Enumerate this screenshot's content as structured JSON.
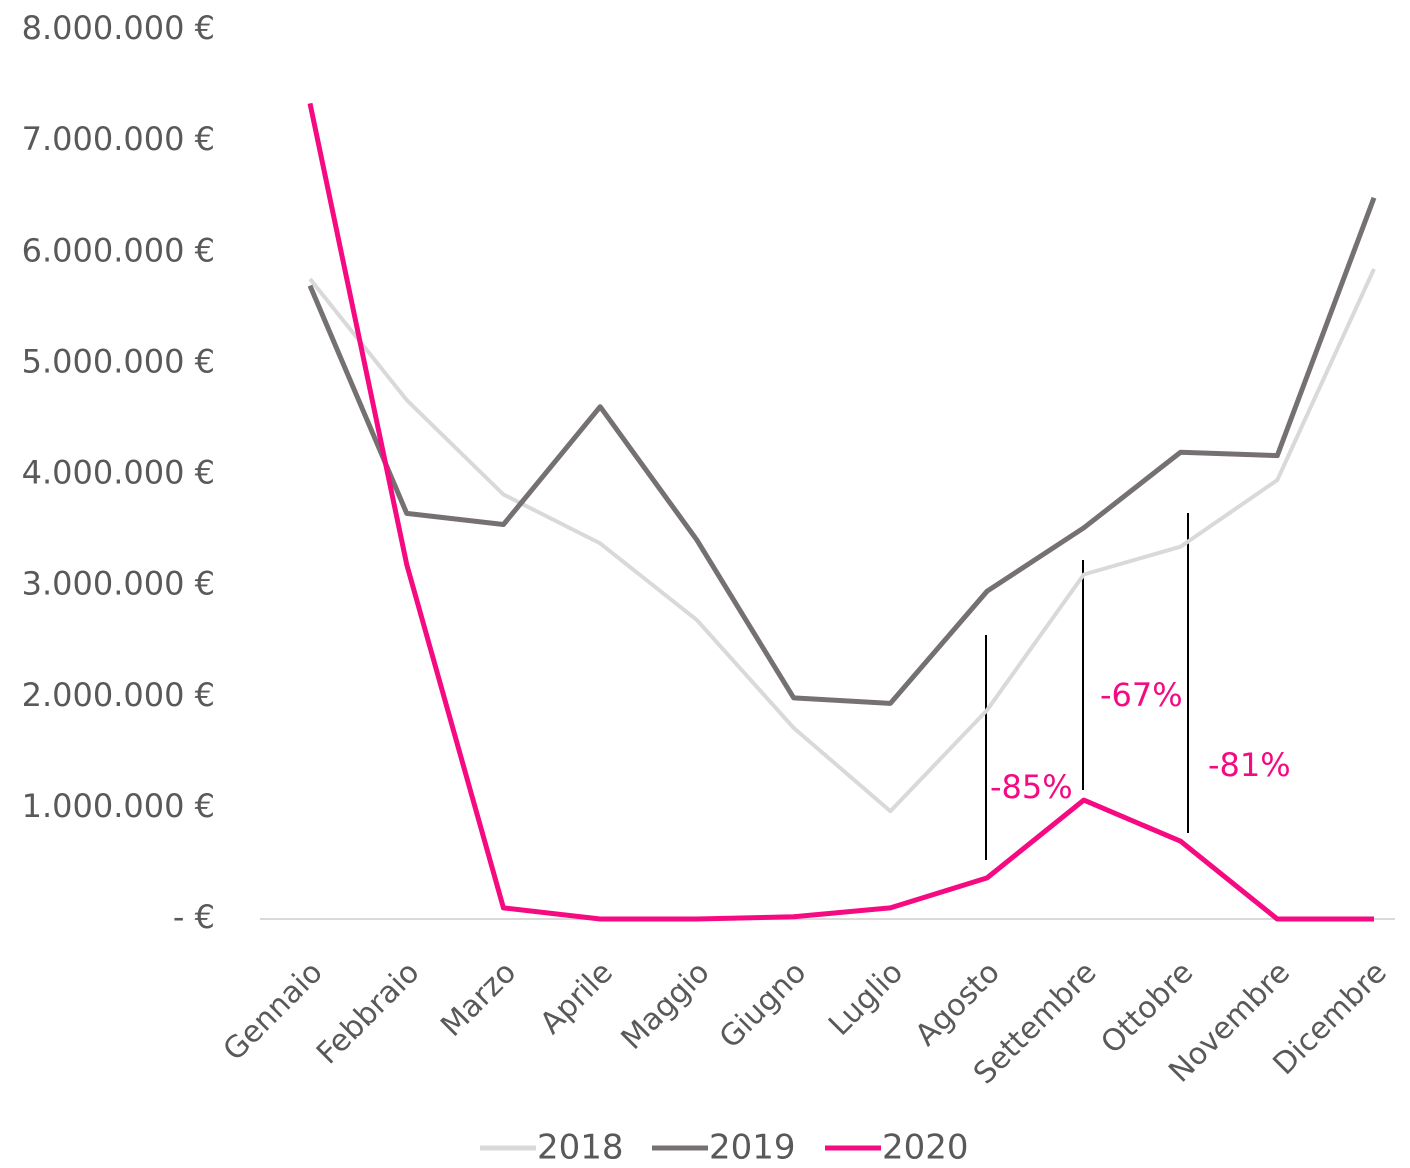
{
  "chart_data": {
    "type": "line",
    "categories": [
      "Gennaio",
      "Febbraio",
      "Marzo",
      "Aprile",
      "Maggio",
      "Giugno",
      "Luglio",
      "Agosto",
      "Settembre",
      "Ottobre",
      "Novembre",
      "Dicembre"
    ],
    "series": [
      {
        "name": "2018",
        "color": "#d9d9d9",
        "values": [
          5760000,
          4670000,
          3820000,
          3380000,
          2690000,
          1720000,
          970000,
          1880000,
          3100000,
          3350000,
          3950000,
          5850000
        ]
      },
      {
        "name": "2019",
        "color": "#767171",
        "values": [
          5700000,
          3650000,
          3550000,
          4610000,
          3410000,
          1990000,
          1940000,
          2950000,
          3520000,
          4200000,
          4170000,
          6490000
        ]
      },
      {
        "name": "2020",
        "color": "#f50a82",
        "values": [
          7340000,
          3190000,
          100000,
          0,
          0,
          20000,
          100000,
          370000,
          1070000,
          700000,
          0,
          0
        ]
      }
    ],
    "ylim": [
      0,
      8000000
    ],
    "yticks": [
      {
        "value": 0,
        "label": "-   €"
      },
      {
        "value": 1000000,
        "label": "1.000.000 €"
      },
      {
        "value": 2000000,
        "label": "2.000.000 €"
      },
      {
        "value": 3000000,
        "label": "3.000.000 €"
      },
      {
        "value": 4000000,
        "label": "4.000.000 €"
      },
      {
        "value": 5000000,
        "label": "5.000.000 €"
      },
      {
        "value": 6000000,
        "label": "6.000.000 €"
      },
      {
        "value": 7000000,
        "label": "7.000.000 €"
      },
      {
        "value": 8000000,
        "label": "8.000.000 €"
      }
    ],
    "annotations": [
      "-85%",
      "-67%",
      "-81%"
    ],
    "grid": false,
    "legend": "bottom"
  }
}
